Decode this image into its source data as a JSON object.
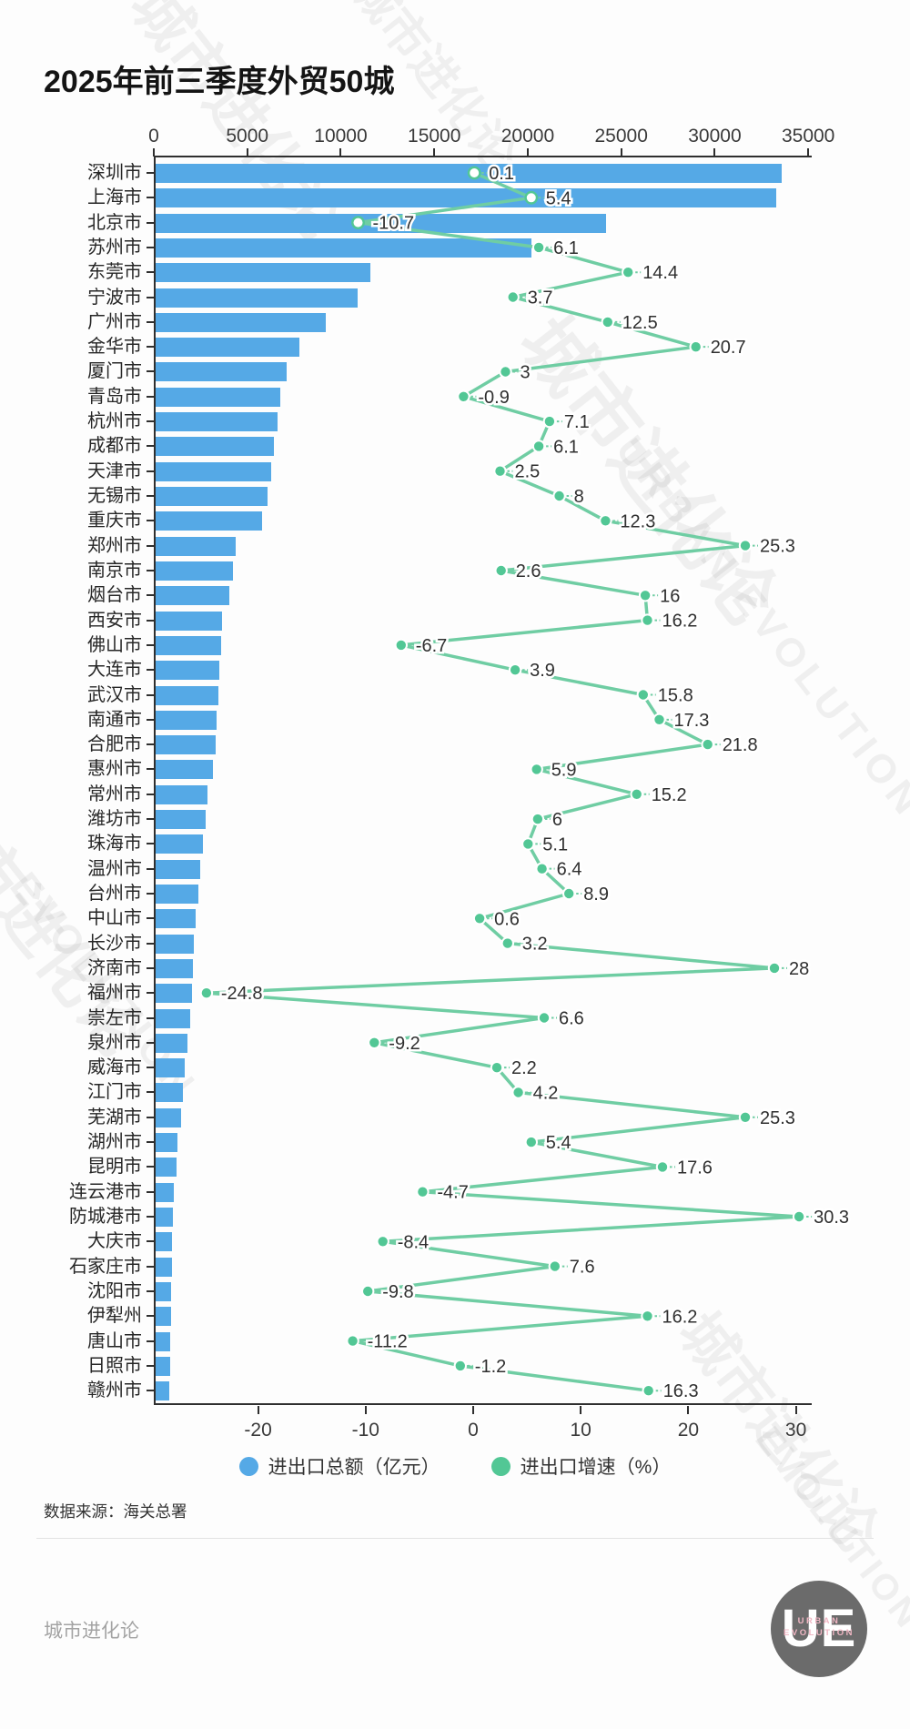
{
  "title": "2025年前三季度外贸50城",
  "source": "数据来源：海关总署",
  "legend": {
    "bar_label": "进出口总额（亿元）",
    "line_label": "进出口增速（%）"
  },
  "footer": {
    "brand": "城市进化论",
    "logo_initials": "UE",
    "logo_line1": "URBAN",
    "logo_line2": "EVOLUTION"
  },
  "watermark": {
    "cn": "城市进化论",
    "en": "URBAN EVOLUTION",
    "en_short": "EVOLUTION"
  },
  "colors": {
    "bar_blue": "#55a9e6",
    "line_green": "#6fcda3",
    "dot_green": "#52c795",
    "label_dark": "#2f2f2f"
  },
  "chart_data": {
    "type": "bar",
    "subtype": "horizontal-bar-with-line",
    "title": "2025年前三季度外贸50城",
    "grid": false,
    "legend_position": "bottom",
    "value_axis": {
      "position": "top",
      "label": "进出口总额（亿元）",
      "min": 0,
      "max": 35000,
      "ticks": [
        0,
        5000,
        10000,
        15000,
        20000,
        25000,
        30000,
        35000
      ]
    },
    "growth_axis": {
      "position": "bottom",
      "label": "进出口增速（%）",
      "min": -25,
      "max": 31,
      "ticks": [
        -20,
        -10,
        0,
        10,
        20,
        30
      ]
    },
    "categories": [
      "深圳市",
      "上海市",
      "北京市",
      "苏州市",
      "东莞市",
      "宁波市",
      "广州市",
      "金华市",
      "厦门市",
      "青岛市",
      "杭州市",
      "成都市",
      "天津市",
      "无锡市",
      "重庆市",
      "郑州市",
      "南京市",
      "烟台市",
      "西安市",
      "佛山市",
      "大连市",
      "武汉市",
      "南通市",
      "合肥市",
      "惠州市",
      "常州市",
      "潍坊市",
      "珠海市",
      "温州市",
      "台州市",
      "中山市",
      "长沙市",
      "济南市",
      "福州市",
      "崇左市",
      "泉州市",
      "威海市",
      "江门市",
      "芜湖市",
      "湖州市",
      "昆明市",
      "连云港市",
      "防城港市",
      "大庆市",
      "石家庄市",
      "沈阳市",
      "伊犁州",
      "唐山市",
      "日照市",
      "赣州市"
    ],
    "series": [
      {
        "name": "进出口总额（亿元）",
        "type": "bar",
        "unit": "亿元",
        "color": "#55a9e6",
        "values": [
          33500,
          33200,
          24100,
          20100,
          11500,
          10800,
          9100,
          7700,
          7000,
          6650,
          6500,
          6350,
          6200,
          6000,
          5700,
          4300,
          4150,
          3950,
          3550,
          3500,
          3420,
          3350,
          3270,
          3200,
          3080,
          2760,
          2700,
          2520,
          2400,
          2300,
          2160,
          2040,
          1980,
          1930,
          1830,
          1720,
          1550,
          1450,
          1380,
          1160,
          1120,
          980,
          940,
          900,
          870,
          840,
          810,
          780,
          760,
          740
        ]
      },
      {
        "name": "进出口增速（%）",
        "type": "line",
        "unit": "%",
        "color": "#52c795",
        "values": [
          0.1,
          5.4,
          -10.7,
          6.1,
          14.4,
          3.7,
          12.5,
          20.7,
          3,
          -0.9,
          7.1,
          6.1,
          2.5,
          8,
          12.3,
          25.3,
          2.6,
          16,
          16.2,
          -6.7,
          3.9,
          15.8,
          17.3,
          21.8,
          5.9,
          15.2,
          6,
          5.1,
          6.4,
          8.9,
          0.6,
          3.2,
          28,
          -24.8,
          6.6,
          -9.2,
          2.2,
          4.2,
          25.3,
          5.4,
          17.6,
          -4.7,
          30.3,
          -8.4,
          7.6,
          -9.8,
          16.2,
          -11.2,
          -1.2,
          16.3
        ]
      }
    ]
  }
}
